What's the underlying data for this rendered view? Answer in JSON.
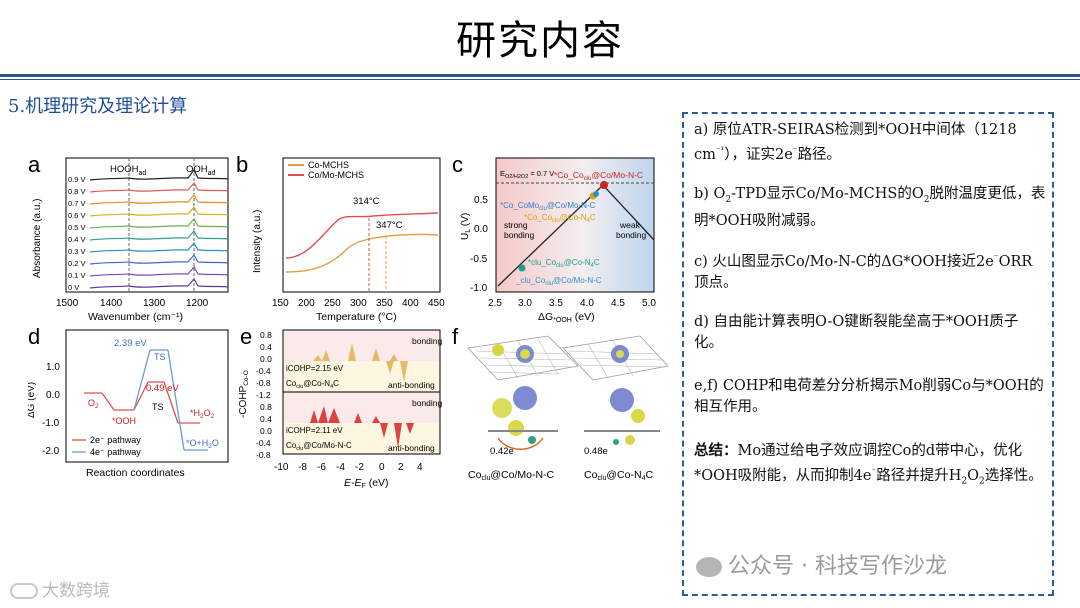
{
  "page": {
    "title": "研究内容",
    "section": "5.机理研究及理论计算"
  },
  "panels": {
    "a_label": "a",
    "a_voltages": [
      "0.9 V",
      "0.8 V",
      "0.7 V",
      "0.6 V",
      "0.5 V",
      "0.4 V",
      "0.3 V",
      "0.2 V",
      "0.1 V",
      "0 V"
    ],
    "a_peak1": "HOOH",
    "a_peak1_sub": "ad",
    "a_peak2": "OOH",
    "a_peak2_sub": "ad",
    "a_ylabel": "Absorbance (a.u.)",
    "a_xlabel": "Wavenumber (cm⁻¹)",
    "a_xticks": [
      "1500",
      "1400",
      "1300",
      "1200"
    ],
    "b_label": "b",
    "b_legend1": "Co-MCHS",
    "b_legend2": "Co/Mo-MCHS",
    "b_peak1": "314°C",
    "b_peak2": "347°C",
    "b_ylabel": "Intensity (a.u.)",
    "b_xlabel": "Temperature (°C)",
    "b_xticks": [
      "150",
      "200",
      "250",
      "300",
      "350",
      "400",
      "450"
    ],
    "c_label": "c",
    "c_eq": "E",
    "c_eq_sub": "O2/H2O2",
    "c_eq_val": " = 0.7 V",
    "c_pt1": "*Co_Co",
    "c_pt1_sub": "clu",
    "c_pt1_tail": "@Co/Mo-N-C",
    "c_pt2": "*Co_CoMo",
    "c_pt2_sub": "clu",
    "c_pt2_tail": "@Co/Mo-N-C",
    "c_pt3": "*Co_Co",
    "c_pt3_sub": "clu",
    "c_pt3_tail": "@Co-N",
    "c_pt3_tail2": "C",
    "c_pt4": "*clu_Co",
    "c_pt4_sub": "clu",
    "c_pt4_tail": "@Co-N",
    "c_pt4_tail2": "C",
    "c_pt5": "_clu_Co",
    "c_pt5_sub": "clu",
    "c_pt5_tail": "@Co/Mo-N-C",
    "c_strong": "strong",
    "c_strong2": "bonding",
    "c_weak": "weak",
    "c_weak2": "bonding",
    "c_ylabel": "U",
    "c_ylabel_sub": "L",
    "c_ylabel_unit": " (V)",
    "c_xlabel": "ΔG",
    "c_xlabel_sub": "*OOH",
    "c_xlabel_unit": " (eV)",
    "c_yticks": [
      "0.5",
      "0.0",
      "-0.5",
      "-1.0"
    ],
    "c_xticks": [
      "2.5",
      "3.0",
      "3.5",
      "4.0",
      "4.5",
      "5.0"
    ],
    "d_label": "d",
    "d_ylabel": "ΔG (eV)",
    "d_xlabel": "Reaction coordinates",
    "d_yticks": [
      "1.0",
      "0.0",
      "-1.0",
      "-2.0"
    ],
    "d_ts1": "2.39 eV",
    "d_ts1b": "TS",
    "d_ts2": "0.49 eV",
    "d_ts2b": "TS",
    "d_o2": "O",
    "d_o2_sub": "2",
    "d_ooh": "*OOH",
    "d_h2o2": "*H",
    "d_h2o2_sub": "2",
    "d_h2o2_tail": "O",
    "d_h2o2_sub2": "2",
    "d_ohh2o": "*O+H",
    "d_ohh2o_sub": "2",
    "d_ohh2o_tail": "O",
    "d_leg1": "2e⁻ pathway",
    "d_leg2": "4e⁻ pathway",
    "e_label": "e",
    "e_bonding1": "bonding",
    "e_anti1": "anti-bonding",
    "e_icohp1": "iCOHP=2.15 eV",
    "e_mat1": "Co",
    "e_mat1_sub": "clu",
    "e_mat1_tail": "@Co-N",
    "e_mat1_sub2": "4",
    "e_mat1_tail2": "C",
    "e_bonding2": "bonding",
    "e_anti2": "anti-bonding",
    "e_icohp2": "iCOHP=2.11 eV",
    "e_mat2": "Co",
    "e_mat2_sub": "clu",
    "e_mat2_tail": "@Co/Mo-N-C",
    "e_ylabel": "-COHP",
    "e_ylabel_sub": "Co-O",
    "e_xlabel": "E-E",
    "e_xlabel_sub": "F",
    "e_xlabel_unit": " (eV)",
    "e_yticks1": [
      "0.8",
      "0.4",
      "0.0",
      "-0.4",
      "-0.8",
      "-1.2"
    ],
    "e_yticks2": [
      "0.8",
      "0.4",
      "0.0",
      "-0.4",
      "-0.8"
    ],
    "e_xticks": [
      "-10",
      "-8",
      "-6",
      "-4",
      "-2",
      "0",
      "2",
      "4"
    ],
    "f_label": "f",
    "f_val1": "0.42e",
    "f_val2": "0.48e",
    "f_cap1": "Co",
    "f_cap1_sub": "clu",
    "f_cap1_tail": "@Co/Mo-N-C",
    "f_cap2": "Co",
    "f_cap2_sub": "clu",
    "f_cap2_tail": "@Co-N",
    "f_cap2_sub2": "4",
    "f_cap2_tail2": "C"
  },
  "text": {
    "p1_a": "a) 原位ATR-SEIRAS检测到*OOH中间体（1218 cm",
    "p1_b": "⁻¹",
    "p1_c": "），证实2e",
    "p1_d": "⁻",
    "p1_e": "路径。",
    "p2_a": "b) O",
    "p2_b": "2",
    "p2_c": "-TPD显示Co/Mo-MCHS的O",
    "p2_d": "2",
    "p2_e": "脱附温度更低，表明*OOH吸附减弱。",
    "p3_a": "c) 火山图显示Co/Mo-N-C的ΔG*OOH接近2e",
    "p3_b": "⁻",
    "p3_c": "ORR顶点。",
    "p4": "d) 自由能计算表明O-O键断裂能垒高于*OOH质子化。",
    "p5": "e,f) COHP和电荷差分分析揭示Mo削弱Co与*OOH的相互作用。",
    "p6_label": "总结：",
    "p6_a": "Mo通过给电子效应调控Co的d带中心，优化*OOH吸附能，从而抑制4e",
    "p6_b": "⁻",
    "p6_c": "路径并提升H",
    "p6_d": "2",
    "p6_e": "O",
    "p6_f": "2",
    "p6_g": "选择性。"
  },
  "watermark": {
    "main": "公众号 · 科技写作沙龙",
    "corner": "大数跨境"
  }
}
